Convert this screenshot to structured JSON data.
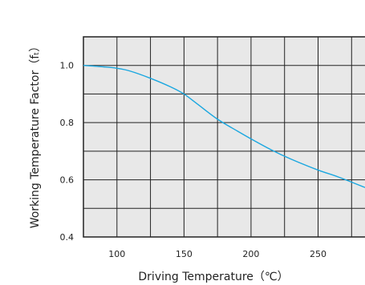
{
  "chart_data": {
    "type": "line",
    "title": "",
    "xlabel": "Driving Temperature（℃）",
    "ylabel": "Working Temperature Factor（fₜ）",
    "xlim": [
      75,
      285
    ],
    "ylim": [
      0.4,
      1.1
    ],
    "x_ticks": [
      100,
      150,
      200,
      250
    ],
    "x_tick_labels": [
      "100",
      "150",
      "200",
      "250"
    ],
    "y_ticks": [
      0.4,
      0.6,
      0.8,
      1.0
    ],
    "y_tick_labels": [
      "0.4",
      "0.6",
      "0.8",
      "1.0"
    ],
    "x_grid": [
      100,
      125,
      150,
      175,
      200,
      225,
      250,
      275
    ],
    "y_grid": [
      0.5,
      0.6,
      0.7,
      0.8,
      0.9,
      1.0
    ],
    "grid": true,
    "legend": "none",
    "series": [
      {
        "color": "#1aa7e0",
        "x": [
          75,
          90,
          100,
          110,
          125,
          140,
          150,
          160,
          175,
          190,
          200,
          215,
          230,
          250,
          265,
          285
        ],
        "y": [
          1.0,
          0.995,
          0.99,
          0.98,
          0.955,
          0.925,
          0.9,
          0.865,
          0.812,
          0.77,
          0.743,
          0.705,
          0.672,
          0.634,
          0.61,
          0.573
        ]
      }
    ],
    "colors": {
      "plot_background": "#e8e8e8",
      "grid": "#222222",
      "line": "#1aa7e0"
    }
  }
}
